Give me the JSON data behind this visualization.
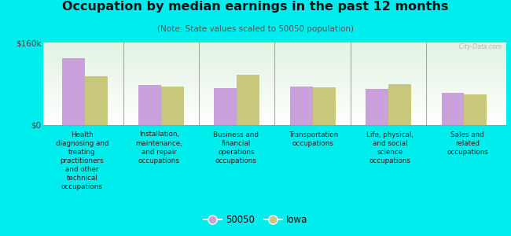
{
  "title": "Occupation by median earnings in the past 12 months",
  "subtitle": "(Note: State values scaled to 50050 population)",
  "background_color": "#00eded",
  "categories": [
    "Health\ndiagnosing and\ntreating\npractitioners\nand other\ntechnical\noccupations",
    "Installation,\nmaintenance,\nand repair\noccupations",
    "Business and\nfinancial\noperations\noccupations",
    "Transportation\noccupations",
    "Life, physical,\nand social\nscience\noccupations",
    "Sales and\nrelated\noccupations"
  ],
  "values_50050": [
    130000,
    78000,
    72000,
    74000,
    70000,
    62000
  ],
  "values_iowa": [
    95000,
    75000,
    97000,
    73000,
    80000,
    60000
  ],
  "color_50050": "#c9a0dc",
  "color_iowa": "#c8c87a",
  "ylim": [
    0,
    160000
  ],
  "legend_labels": [
    "50050",
    "Iowa"
  ],
  "watermark": "  City-Data.com"
}
